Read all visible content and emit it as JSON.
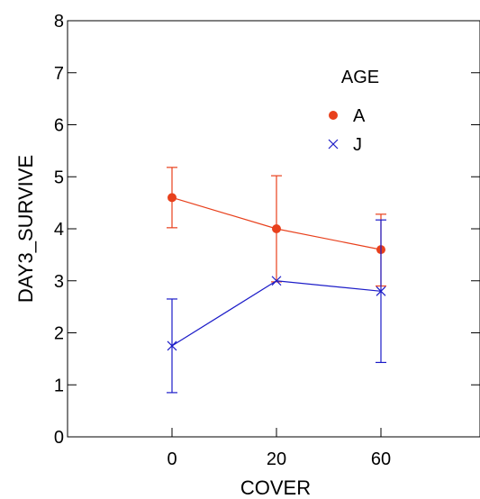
{
  "chart_data": {
    "type": "line",
    "xlabel": "COVER",
    "ylabel": "DAY3_SURVIVE",
    "categories": [
      "0",
      "20",
      "60"
    ],
    "ylim": [
      0,
      8
    ],
    "yticks": [
      0,
      1,
      2,
      3,
      4,
      5,
      6,
      7,
      8
    ],
    "grid": false,
    "legend": {
      "title": "AGE",
      "placement": "top-right"
    },
    "series": [
      {
        "name": "A",
        "color": "#e8401c",
        "marker": "filled-circle",
        "values": [
          4.6,
          4.0,
          3.6
        ],
        "error_low": [
          4.02,
          2.98,
          2.9
        ],
        "error_high": [
          5.18,
          5.02,
          4.28
        ]
      },
      {
        "name": "J",
        "color": "#1c1cc8",
        "marker": "x",
        "values": [
          1.75,
          3.0,
          2.8
        ],
        "error_low": [
          0.85,
          3.0,
          1.43
        ],
        "error_high": [
          2.65,
          3.0,
          4.17
        ]
      }
    ]
  }
}
